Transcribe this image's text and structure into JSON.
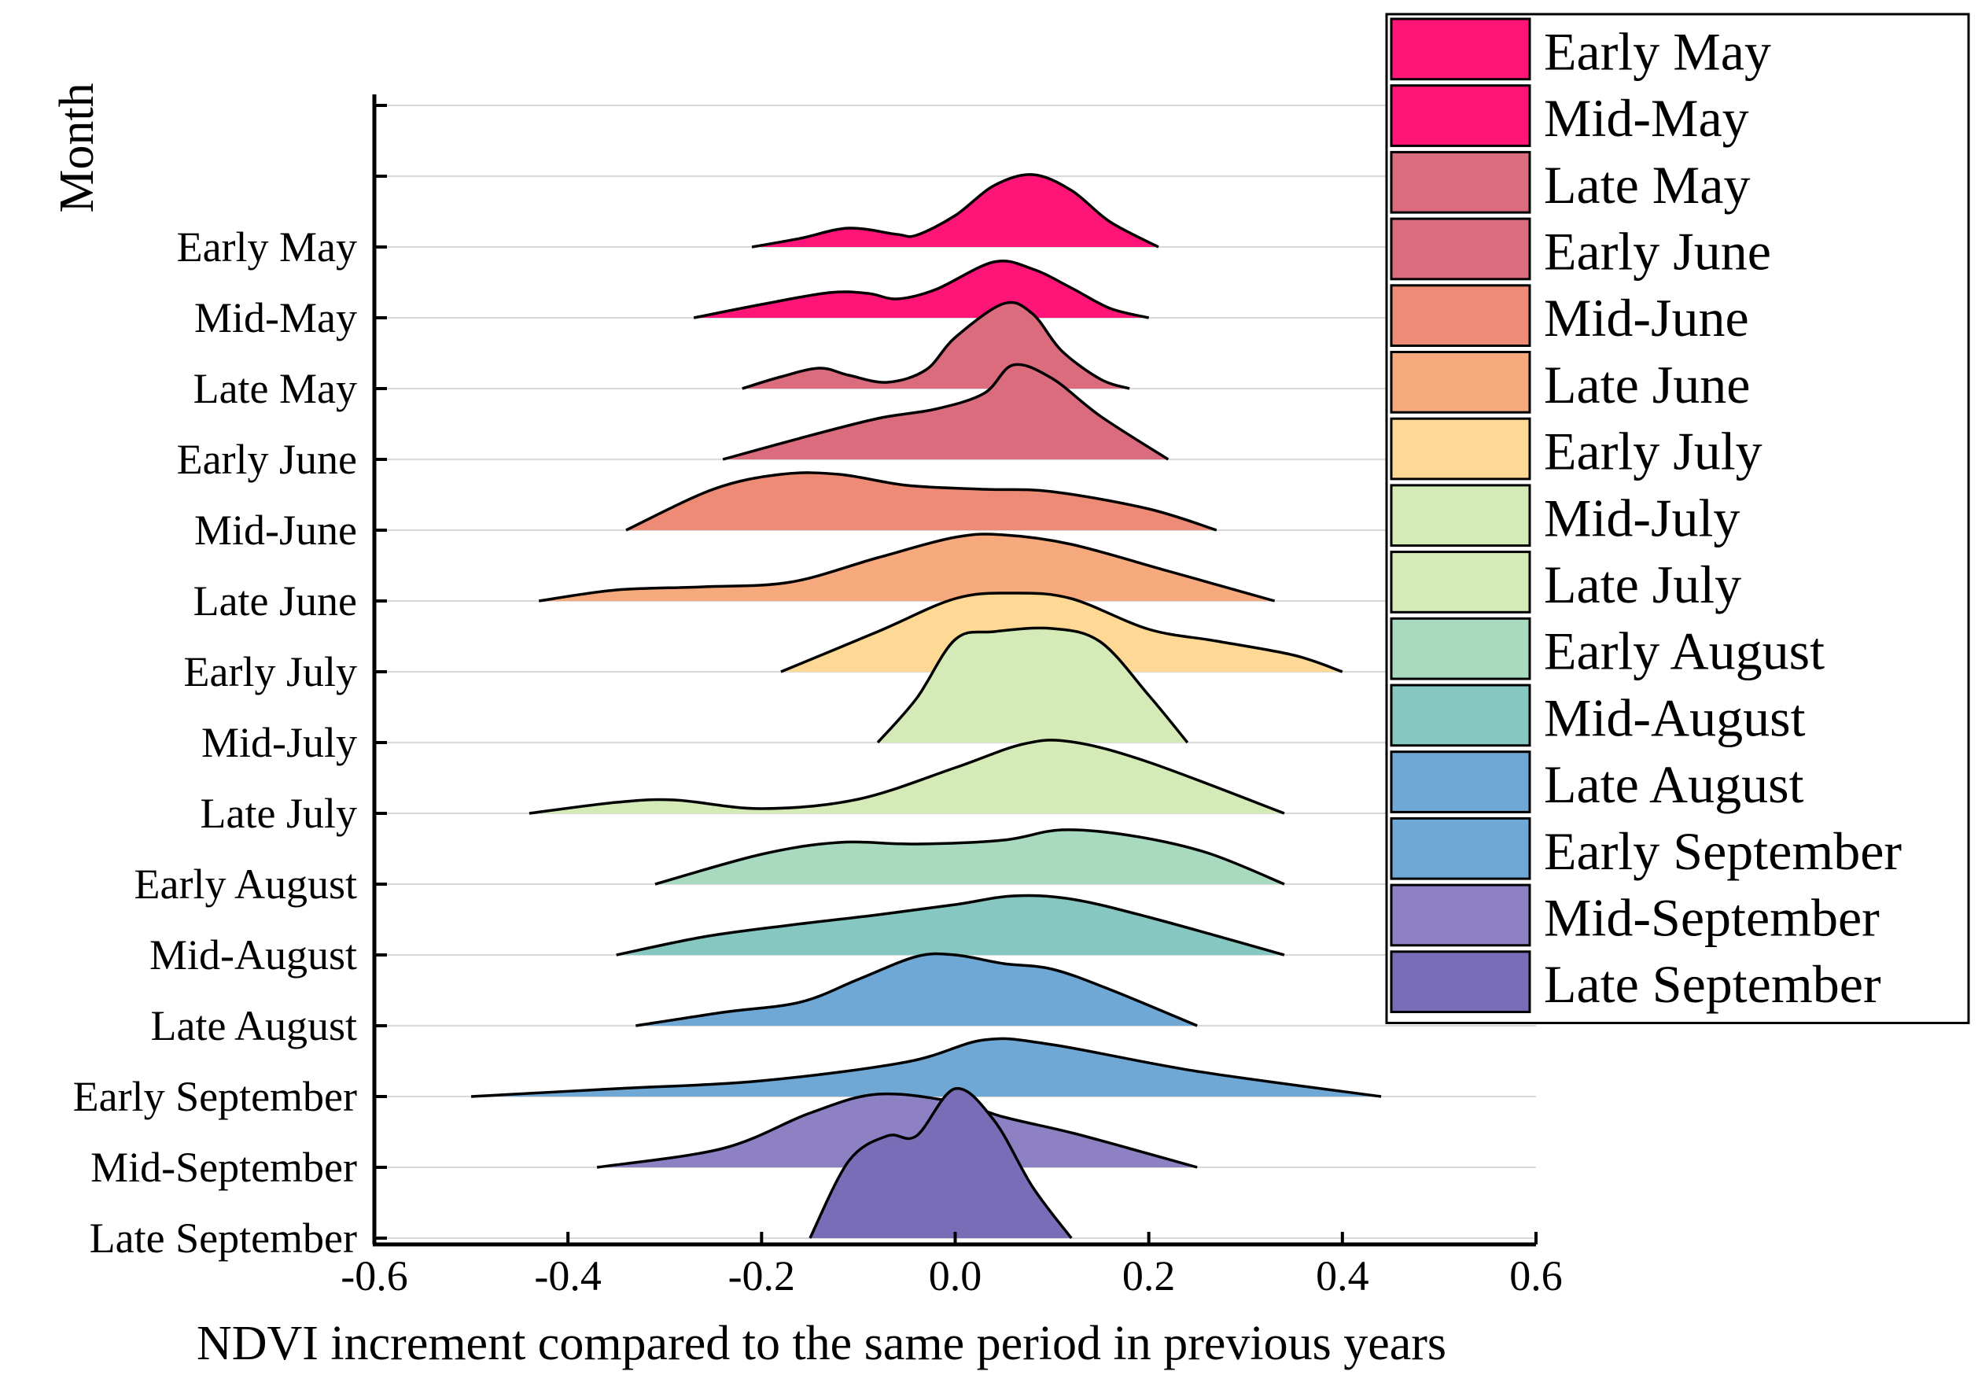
{
  "chart_data": {
    "type": "ridgeline",
    "title": "",
    "xlabel": "NDVI increment compared to the same period in previous years",
    "ylabel": "Month",
    "xlim": [
      -0.6,
      0.6
    ],
    "x_ticks": [
      "-0.6",
      "-0.4",
      "-0.2",
      "0.0",
      "0.2",
      "0.4",
      "0.6"
    ],
    "x_tick_values": [
      -0.6,
      -0.4,
      -0.2,
      0.0,
      0.2,
      0.4,
      0.6
    ],
    "grid": "horizontal",
    "legend_position": "top-right",
    "series": [
      {
        "name": "Early May",
        "color": "#FF1478",
        "range": [
          -0.21,
          0.21
        ],
        "points": [
          [
            -0.21,
            0.0
          ],
          [
            -0.16,
            0.11
          ],
          [
            -0.11,
            0.24
          ],
          [
            -0.06,
            0.16
          ],
          [
            -0.04,
            0.15
          ],
          [
            0.0,
            0.4
          ],
          [
            0.04,
            0.78
          ],
          [
            0.08,
            0.92
          ],
          [
            0.12,
            0.72
          ],
          [
            0.16,
            0.32
          ],
          [
            0.21,
            0.0
          ]
        ]
      },
      {
        "name": "Mid-May",
        "color": "#FF1478",
        "range": [
          -0.27,
          0.2
        ],
        "points": [
          [
            -0.27,
            0.0
          ],
          [
            -0.2,
            0.17
          ],
          [
            -0.13,
            0.32
          ],
          [
            -0.09,
            0.31
          ],
          [
            -0.06,
            0.24
          ],
          [
            -0.02,
            0.36
          ],
          [
            0.04,
            0.71
          ],
          [
            0.08,
            0.62
          ],
          [
            0.12,
            0.38
          ],
          [
            0.16,
            0.12
          ],
          [
            0.2,
            0.0
          ]
        ]
      },
      {
        "name": "Late May",
        "color": "#DB6C7E",
        "range": [
          -0.22,
          0.18
        ],
        "points": [
          [
            -0.22,
            0.0
          ],
          [
            -0.18,
            0.15
          ],
          [
            -0.14,
            0.26
          ],
          [
            -0.11,
            0.17
          ],
          [
            -0.07,
            0.08
          ],
          [
            -0.03,
            0.24
          ],
          [
            0.0,
            0.65
          ],
          [
            0.05,
            1.08
          ],
          [
            0.08,
            0.95
          ],
          [
            0.11,
            0.48
          ],
          [
            0.15,
            0.12
          ],
          [
            0.18,
            0.0
          ]
        ]
      },
      {
        "name": "Early June",
        "color": "#DB6C7E",
        "range": [
          -0.24,
          0.22
        ],
        "points": [
          [
            -0.24,
            0.0
          ],
          [
            -0.16,
            0.27
          ],
          [
            -0.08,
            0.52
          ],
          [
            -0.02,
            0.64
          ],
          [
            0.03,
            0.84
          ],
          [
            0.06,
            1.2
          ],
          [
            0.1,
            1.03
          ],
          [
            0.15,
            0.55
          ],
          [
            0.22,
            0.0
          ]
        ]
      },
      {
        "name": "Mid-June",
        "color": "#EE8B76",
        "range": [
          -0.34,
          0.27
        ],
        "points": [
          [
            -0.34,
            0.0
          ],
          [
            -0.25,
            0.52
          ],
          [
            -0.18,
            0.71
          ],
          [
            -0.12,
            0.71
          ],
          [
            -0.05,
            0.57
          ],
          [
            0.03,
            0.52
          ],
          [
            0.1,
            0.49
          ],
          [
            0.2,
            0.27
          ],
          [
            0.27,
            0.0
          ]
        ]
      },
      {
        "name": "Late June",
        "color": "#F6A97C",
        "range": [
          -0.43,
          0.33
        ],
        "points": [
          [
            -0.43,
            0.0
          ],
          [
            -0.35,
            0.14
          ],
          [
            -0.26,
            0.18
          ],
          [
            -0.17,
            0.24
          ],
          [
            -0.08,
            0.55
          ],
          [
            0.0,
            0.81
          ],
          [
            0.05,
            0.84
          ],
          [
            0.12,
            0.72
          ],
          [
            0.22,
            0.38
          ],
          [
            0.33,
            0.0
          ]
        ]
      },
      {
        "name": "Early July",
        "color": "#FDD995",
        "range": [
          -0.18,
          0.4
        ],
        "points": [
          [
            -0.18,
            0.0
          ],
          [
            -0.08,
            0.51
          ],
          [
            0.0,
            0.93
          ],
          [
            0.06,
            1.0
          ],
          [
            0.12,
            0.93
          ],
          [
            0.2,
            0.54
          ],
          [
            0.27,
            0.39
          ],
          [
            0.35,
            0.21
          ],
          [
            0.4,
            0.0
          ]
        ]
      },
      {
        "name": "Mid-July",
        "color": "#D4EBB7",
        "range": [
          -0.08,
          0.24
        ],
        "points": [
          [
            -0.08,
            0.0
          ],
          [
            -0.04,
            0.56
          ],
          [
            0.0,
            1.31
          ],
          [
            0.04,
            1.41
          ],
          [
            0.1,
            1.45
          ],
          [
            0.15,
            1.28
          ],
          [
            0.2,
            0.6
          ],
          [
            0.24,
            0.0
          ]
        ]
      },
      {
        "name": "Late July",
        "color": "#D4EBB7",
        "range": [
          -0.44,
          0.34
        ],
        "points": [
          [
            -0.44,
            0.0
          ],
          [
            -0.35,
            0.14
          ],
          [
            -0.29,
            0.17
          ],
          [
            -0.2,
            0.06
          ],
          [
            -0.1,
            0.18
          ],
          [
            0.0,
            0.58
          ],
          [
            0.07,
            0.88
          ],
          [
            0.12,
            0.91
          ],
          [
            0.2,
            0.65
          ],
          [
            0.34,
            0.0
          ]
        ]
      },
      {
        "name": "Early August",
        "color": "#A8DAC0",
        "range": [
          -0.31,
          0.34
        ],
        "points": [
          [
            -0.31,
            0.0
          ],
          [
            -0.2,
            0.38
          ],
          [
            -0.12,
            0.53
          ],
          [
            -0.04,
            0.51
          ],
          [
            0.05,
            0.56
          ],
          [
            0.11,
            0.69
          ],
          [
            0.18,
            0.62
          ],
          [
            0.26,
            0.4
          ],
          [
            0.34,
            0.0
          ]
        ]
      },
      {
        "name": "Mid-August",
        "color": "#86C8C1",
        "range": [
          -0.35,
          0.34
        ],
        "points": [
          [
            -0.35,
            0.0
          ],
          [
            -0.26,
            0.23
          ],
          [
            -0.17,
            0.38
          ],
          [
            -0.08,
            0.51
          ],
          [
            0.0,
            0.64
          ],
          [
            0.06,
            0.75
          ],
          [
            0.12,
            0.71
          ],
          [
            0.2,
            0.48
          ],
          [
            0.34,
            0.0
          ]
        ]
      },
      {
        "name": "Late August",
        "color": "#6FA7D5",
        "range": [
          -0.33,
          0.25
        ],
        "points": [
          [
            -0.33,
            0.0
          ],
          [
            -0.24,
            0.17
          ],
          [
            -0.16,
            0.3
          ],
          [
            -0.1,
            0.59
          ],
          [
            -0.04,
            0.88
          ],
          [
            0.0,
            0.9
          ],
          [
            0.05,
            0.79
          ],
          [
            0.1,
            0.72
          ],
          [
            0.16,
            0.46
          ],
          [
            0.25,
            0.0
          ]
        ]
      },
      {
        "name": "Early September",
        "color": "#6FA7D5",
        "range": [
          -0.5,
          0.44
        ],
        "points": [
          [
            -0.5,
            0.0
          ],
          [
            -0.35,
            0.1
          ],
          [
            -0.2,
            0.2
          ],
          [
            -0.05,
            0.44
          ],
          [
            0.03,
            0.72
          ],
          [
            0.1,
            0.66
          ],
          [
            0.25,
            0.32
          ],
          [
            0.44,
            0.0
          ]
        ]
      },
      {
        "name": "Mid-September",
        "color": "#8D81C3",
        "range": [
          -0.37,
          0.25
        ],
        "points": [
          [
            -0.37,
            0.0
          ],
          [
            -0.24,
            0.24
          ],
          [
            -0.15,
            0.69
          ],
          [
            -0.08,
            0.93
          ],
          [
            0.0,
            0.83
          ],
          [
            0.05,
            0.64
          ],
          [
            0.12,
            0.44
          ],
          [
            0.18,
            0.24
          ],
          [
            0.25,
            0.0
          ]
        ]
      },
      {
        "name": "Late September",
        "color": "#7A6DB7",
        "range": [
          -0.15,
          0.12
        ],
        "points": [
          [
            -0.15,
            0.0
          ],
          [
            -0.11,
            0.98
          ],
          [
            -0.07,
            1.3
          ],
          [
            -0.04,
            1.3
          ],
          [
            0.0,
            1.9
          ],
          [
            0.04,
            1.5
          ],
          [
            0.08,
            0.65
          ],
          [
            0.12,
            0.0
          ]
        ]
      }
    ]
  }
}
